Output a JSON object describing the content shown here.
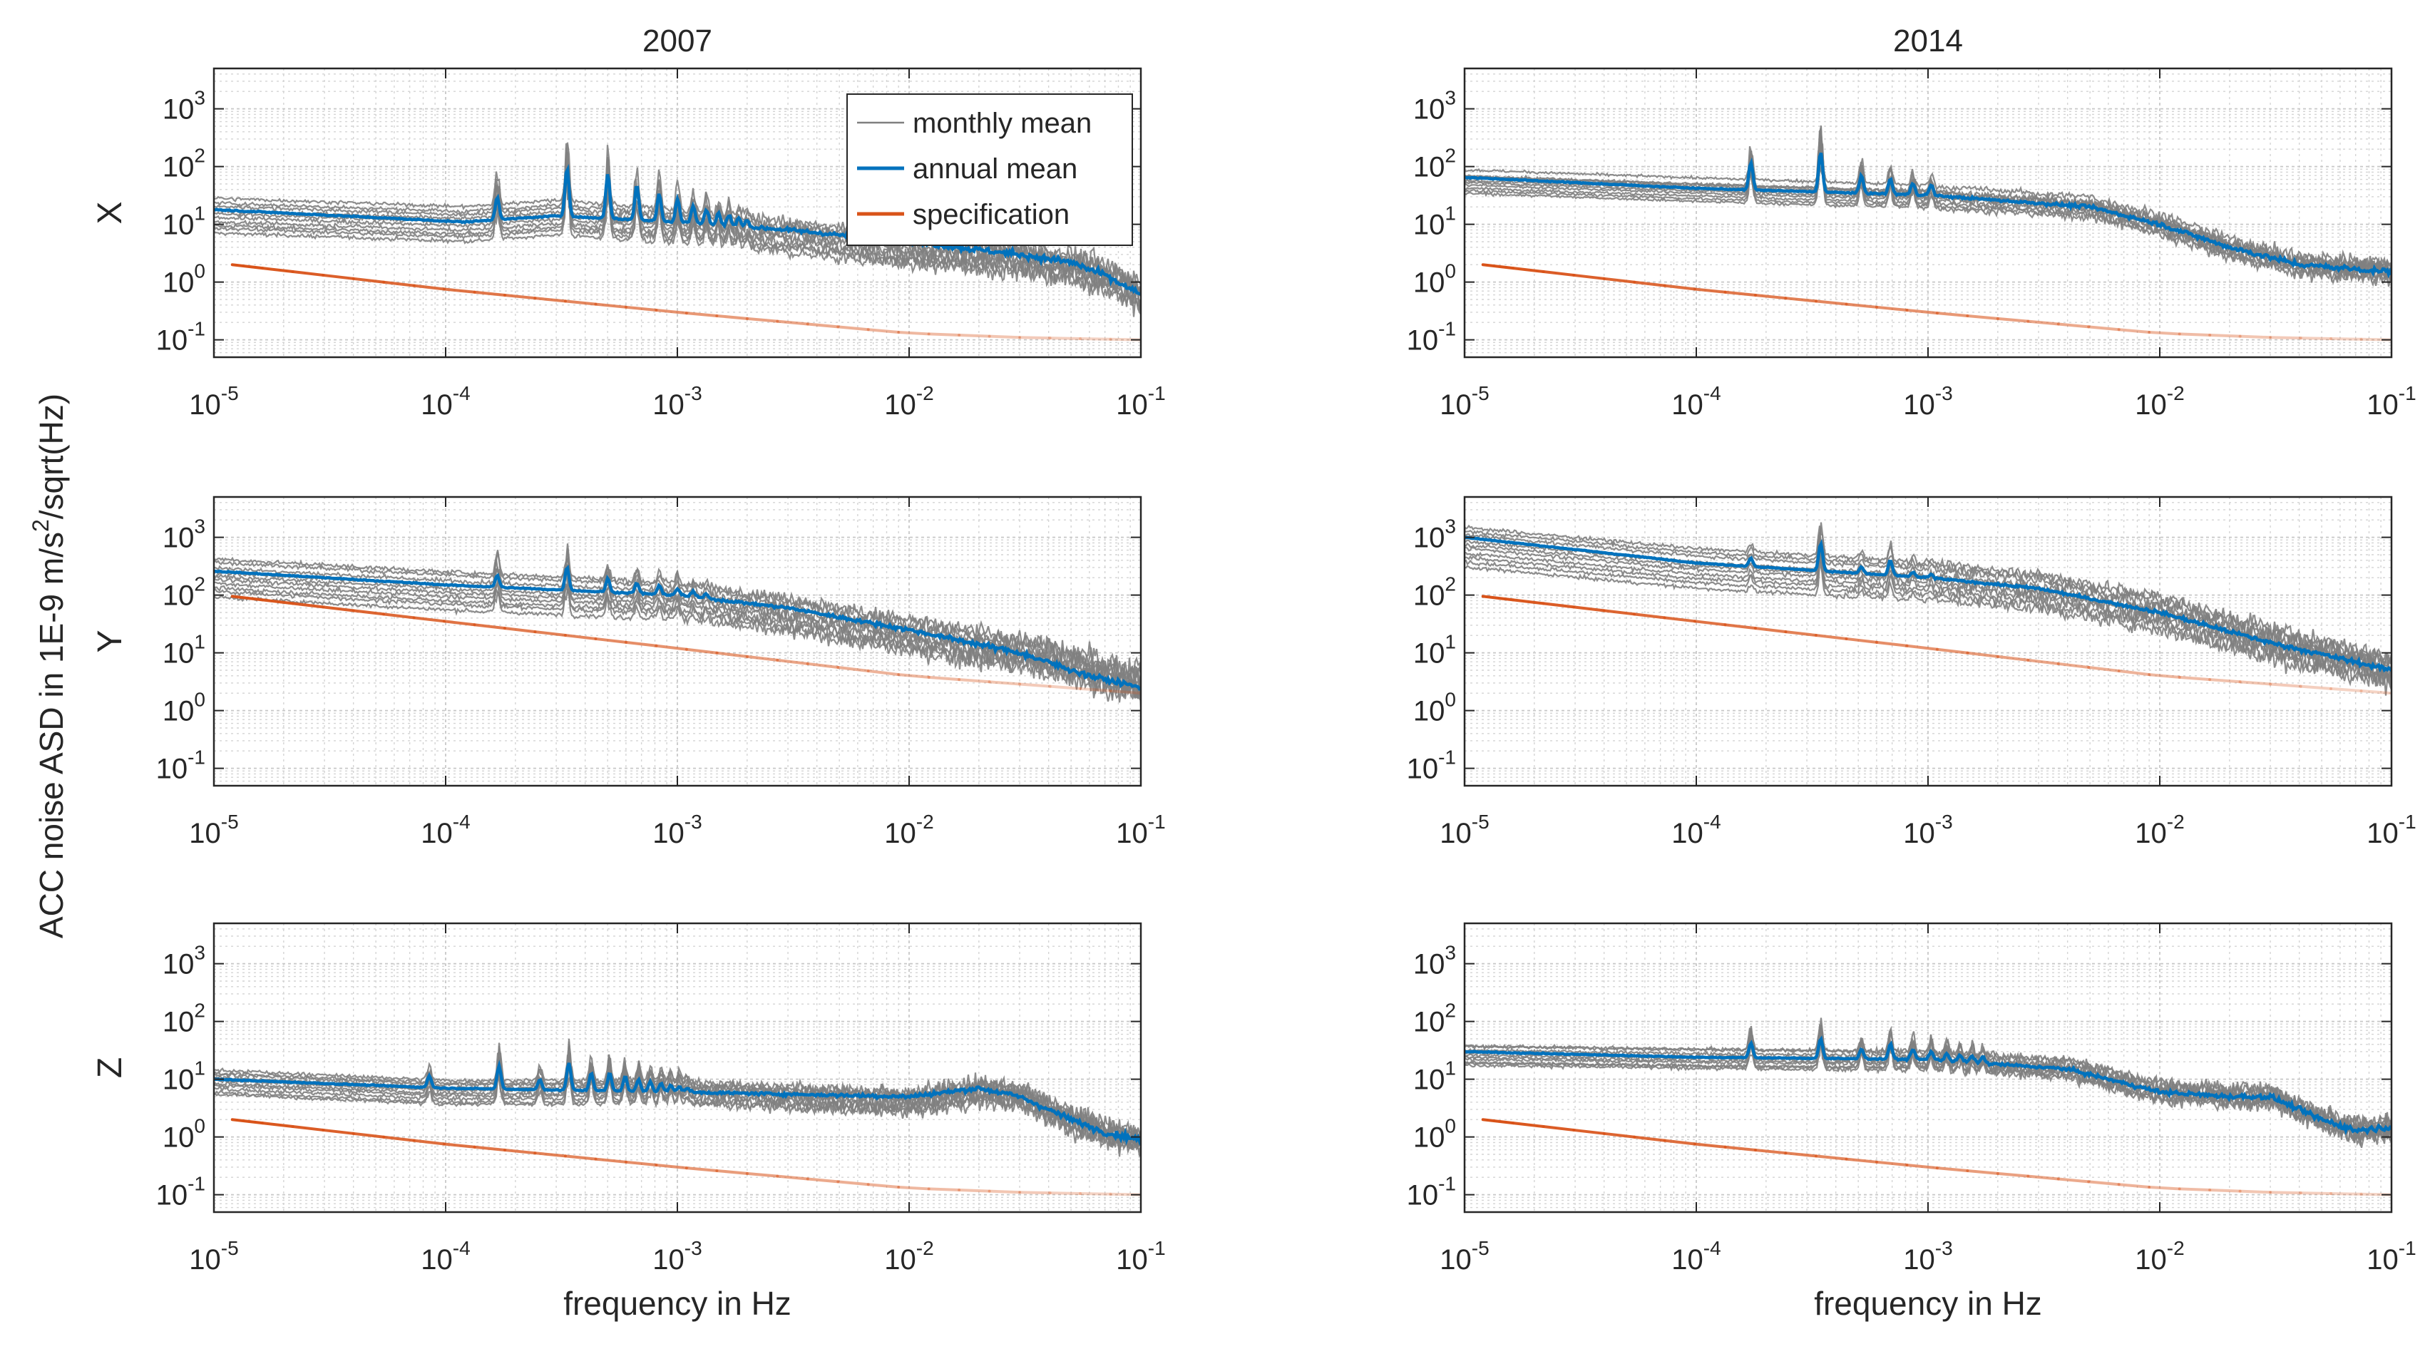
{
  "figure": {
    "ylabel": "ACC noise ASD in 1E-9 m/s",
    "ylabel_sup": "2",
    "ylabel_tail": "/sqrt(Hz)"
  },
  "chart_data": [
    {
      "type": "line",
      "panel": "2007-X",
      "title": "2007",
      "axis": "X",
      "xlabel": "",
      "xscale": "log",
      "yscale": "log",
      "xlim": [
        1e-05,
        0.1
      ],
      "ylim": [
        0.05,
        5000
      ],
      "x_ticks": [
        "10^-5",
        "10^-4",
        "10^-3",
        "10^-2",
        "10^-1"
      ],
      "y_ticks": [
        "10^-1",
        "10^0",
        "10^1",
        "10^2",
        "10^3"
      ],
      "grid": true,
      "legend": "top-right",
      "series": [
        {
          "name": "monthly mean",
          "color": "#808080",
          "anchors": [
            [
              1e-05,
              14
            ],
            [
              0.00012,
              10
            ],
            [
              0.0003,
              13
            ],
            [
              0.001,
              9
            ],
            [
              0.003,
              6
            ],
            [
              0.01,
              3.5
            ],
            [
              0.03,
              2.5
            ],
            [
              0.05,
              1.8
            ],
            [
              0.07,
              1.2
            ],
            [
              0.1,
              0.6
            ]
          ],
          "spread": 2.2,
          "peak_base": 0.000167,
          "peak_heights": [
            4,
            15,
            8,
            5,
            4,
            3,
            2.5,
            2.2,
            2,
            1.8,
            1.6,
            1.5
          ],
          "noise": 0.5
        },
        {
          "name": "annual mean",
          "color": "#0072BD",
          "anchors": [
            [
              1e-05,
              18
            ],
            [
              0.00012,
              11
            ],
            [
              0.0003,
              14
            ],
            [
              0.001,
              11
            ],
            [
              0.003,
              8
            ],
            [
              0.01,
              5
            ],
            [
              0.03,
              3
            ],
            [
              0.05,
              2.2
            ],
            [
              0.07,
              1.3
            ],
            [
              0.1,
              0.6
            ]
          ],
          "peak_base": 0.000167,
          "peak_heights": [
            2.5,
            7,
            6,
            4,
            3,
            2.5,
            2,
            1.8,
            1.6,
            1.5,
            1.4,
            1.3
          ],
          "noise": 0.15
        },
        {
          "name": "specification",
          "color": "#D95319",
          "anchors": [
            [
              1.2e-05,
              2
            ],
            [
              0.0001,
              0.75
            ],
            [
              0.001,
              0.3
            ],
            [
              0.01,
              0.13
            ],
            [
              0.03,
              0.11
            ],
            [
              0.1,
              0.1
            ]
          ]
        }
      ]
    },
    {
      "type": "line",
      "panel": "2014-X",
      "title": "2014",
      "axis": "",
      "xlabel": "",
      "xscale": "log",
      "yscale": "log",
      "xlim": [
        1e-05,
        0.1
      ],
      "ylim": [
        0.05,
        5000
      ],
      "x_ticks": [
        "10^-5",
        "10^-4",
        "10^-3",
        "10^-2",
        "10^-1"
      ],
      "y_ticks": [
        "10^-1",
        "10^0",
        "10^1",
        "10^2",
        "10^3"
      ],
      "grid": true,
      "series": [
        {
          "name": "monthly mean",
          "color": "#808080",
          "anchors": [
            [
              1e-05,
              55
            ],
            [
              0.0001,
              40
            ],
            [
              0.001,
              30
            ],
            [
              0.005,
              20
            ],
            [
              0.01,
              10
            ],
            [
              0.02,
              4
            ],
            [
              0.04,
              2
            ],
            [
              0.1,
              1.6
            ]
          ],
          "spread": 1.6,
          "peak_base": 0.000172,
          "peak_heights": [
            4,
            12,
            3,
            2.5,
            2,
            1.8
          ],
          "noise": 0.35
        },
        {
          "name": "annual mean",
          "color": "#0072BD",
          "anchors": [
            [
              1e-05,
              65
            ],
            [
              0.0001,
              42
            ],
            [
              0.001,
              32
            ],
            [
              0.005,
              20
            ],
            [
              0.01,
              10
            ],
            [
              0.02,
              4
            ],
            [
              0.04,
              2
            ],
            [
              0.1,
              1.5
            ]
          ],
          "peak_base": 0.000172,
          "peak_heights": [
            3,
            5,
            2,
            1.8,
            1.6,
            1.5
          ],
          "noise": 0.12
        },
        {
          "name": "specification",
          "color": "#D95319",
          "anchors": [
            [
              1.2e-05,
              2
            ],
            [
              0.0001,
              0.75
            ],
            [
              0.001,
              0.3
            ],
            [
              0.01,
              0.13
            ],
            [
              0.03,
              0.11
            ],
            [
              0.1,
              0.1
            ]
          ]
        }
      ]
    },
    {
      "type": "line",
      "panel": "2007-Y",
      "title": "",
      "axis": "Y",
      "xlabel": "",
      "xscale": "log",
      "yscale": "log",
      "xlim": [
        1e-05,
        0.1
      ],
      "ylim": [
        0.05,
        5000
      ],
      "x_ticks": [
        "10^-5",
        "10^-4",
        "10^-3",
        "10^-2",
        "10^-1"
      ],
      "y_ticks": [
        "10^-1",
        "10^0",
        "10^1",
        "10^2",
        "10^3"
      ],
      "grid": true,
      "series": [
        {
          "name": "monthly mean",
          "color": "#808080",
          "anchors": [
            [
              1e-05,
              200
            ],
            [
              0.0001,
              120
            ],
            [
              0.001,
              80
            ],
            [
              0.003,
              45
            ],
            [
              0.01,
              20
            ],
            [
              0.03,
              10
            ],
            [
              0.1,
              3
            ]
          ],
          "spread": 2.3,
          "peak_base": 0.000167,
          "peak_heights": [
            2.5,
            3.5,
            2,
            1.8,
            1.6,
            1.5,
            1.4,
            1.3
          ],
          "noise": 0.55
        },
        {
          "name": "annual mean",
          "color": "#0072BD",
          "anchors": [
            [
              1e-05,
              260
            ],
            [
              0.0001,
              150
            ],
            [
              0.001,
              100
            ],
            [
              0.003,
              60
            ],
            [
              0.01,
              25
            ],
            [
              0.03,
              10
            ],
            [
              0.06,
              4
            ],
            [
              0.1,
              2.5
            ]
          ],
          "peak_base": 0.000167,
          "peak_heights": [
            1.6,
            2.5,
            1.7,
            1.5,
            1.4,
            1.3,
            1.25,
            1.2
          ],
          "noise": 0.12
        },
        {
          "name": "specification",
          "color": "#D95319",
          "anchors": [
            [
              1.2e-05,
              95
            ],
            [
              0.0001,
              35
            ],
            [
              0.001,
              12
            ],
            [
              0.01,
              4
            ],
            [
              0.1,
              2
            ]
          ]
        }
      ]
    },
    {
      "type": "line",
      "panel": "2014-Y",
      "title": "",
      "axis": "",
      "xlabel": "",
      "xscale": "log",
      "yscale": "log",
      "xlim": [
        1e-05,
        0.1
      ],
      "ylim": [
        0.05,
        5000
      ],
      "x_ticks": [
        "10^-5",
        "10^-4",
        "10^-3",
        "10^-2",
        "10^-1"
      ],
      "y_ticks": [
        "10^-1",
        "10^0",
        "10^1",
        "10^2",
        "10^3"
      ],
      "grid": true,
      "series": [
        {
          "name": "monthly mean",
          "color": "#808080",
          "anchors": [
            [
              1e-05,
              700
            ],
            [
              0.0001,
              300
            ],
            [
              0.001,
              180
            ],
            [
              0.003,
              120
            ],
            [
              0.01,
              50
            ],
            [
              0.03,
              15
            ],
            [
              0.1,
              5
            ]
          ],
          "spread": 2.4,
          "peak_base": 0.000172,
          "peak_heights": [
            1.5,
            4,
            1.4,
            2,
            1.3,
            1.2
          ],
          "noise": 0.5
        },
        {
          "name": "annual mean",
          "color": "#0072BD",
          "anchors": [
            [
              1e-05,
              1000
            ],
            [
              0.0001,
              360
            ],
            [
              0.001,
              200
            ],
            [
              0.003,
              130
            ],
            [
              0.01,
              50
            ],
            [
              0.03,
              15
            ],
            [
              0.1,
              5
            ]
          ],
          "peak_base": 0.000172,
          "peak_heights": [
            1.4,
            3,
            1.3,
            1.8,
            1.2,
            1.15
          ],
          "noise": 0.1
        },
        {
          "name": "specification",
          "color": "#D95319",
          "anchors": [
            [
              1.2e-05,
              95
            ],
            [
              0.0001,
              35
            ],
            [
              0.001,
              12
            ],
            [
              0.01,
              4
            ],
            [
              0.1,
              2
            ]
          ]
        }
      ]
    },
    {
      "type": "line",
      "panel": "2007-Z",
      "title": "",
      "axis": "Z",
      "xlabel": "frequency in Hz",
      "xscale": "log",
      "yscale": "log",
      "xlim": [
        1e-05,
        0.1
      ],
      "ylim": [
        0.05,
        5000
      ],
      "x_ticks": [
        "10^-5",
        "10^-4",
        "10^-3",
        "10^-2",
        "10^-1"
      ],
      "y_ticks": [
        "10^-1",
        "10^0",
        "10^1",
        "10^2",
        "10^3"
      ],
      "grid": true,
      "series": [
        {
          "name": "monthly mean",
          "color": "#808080",
          "anchors": [
            [
              1e-05,
              9
            ],
            [
              0.0001,
              6
            ],
            [
              0.001,
              6
            ],
            [
              0.01,
              4
            ],
            [
              0.02,
              6
            ],
            [
              0.03,
              5
            ],
            [
              0.05,
              2
            ],
            [
              0.07,
              1.2
            ],
            [
              0.1,
              0.9
            ]
          ],
          "spread": 1.8,
          "peak_base": 8.5e-05,
          "peak_heights": [
            2,
            4,
            2,
            5,
            3,
            3,
            2.5,
            2.2,
            2,
            1.8,
            1.6,
            1.5,
            1.4
          ],
          "noise": 0.5
        },
        {
          "name": "annual mean",
          "color": "#0072BD",
          "anchors": [
            [
              1e-05,
              10
            ],
            [
              0.0001,
              7
            ],
            [
              0.001,
              6
            ],
            [
              0.01,
              5
            ],
            [
              0.02,
              7
            ],
            [
              0.03,
              5
            ],
            [
              0.05,
              2
            ],
            [
              0.07,
              1.2
            ],
            [
              0.1,
              0.9
            ]
          ],
          "peak_base": 8.5e-05,
          "peak_heights": [
            1.6,
            2.5,
            1.5,
            3,
            2,
            2,
            1.8,
            1.6,
            1.5,
            1.4,
            1.3,
            1.25,
            1.2
          ],
          "noise": 0.12
        },
        {
          "name": "specification",
          "color": "#D95319",
          "anchors": [
            [
              1.2e-05,
              2
            ],
            [
              0.0001,
              0.75
            ],
            [
              0.001,
              0.3
            ],
            [
              0.01,
              0.13
            ],
            [
              0.03,
              0.11
            ],
            [
              0.1,
              0.1
            ]
          ]
        }
      ]
    },
    {
      "type": "line",
      "panel": "2014-Z",
      "title": "",
      "axis": "",
      "xlabel": "frequency in Hz",
      "xscale": "log",
      "yscale": "log",
      "xlim": [
        1e-05,
        0.1
      ],
      "ylim": [
        0.05,
        5000
      ],
      "x_ticks": [
        "10^-5",
        "10^-4",
        "10^-3",
        "10^-2",
        "10^-1"
      ],
      "y_ticks": [
        "10^-1",
        "10^0",
        "10^1",
        "10^2",
        "10^3"
      ],
      "grid": true,
      "series": [
        {
          "name": "monthly mean",
          "color": "#808080",
          "anchors": [
            [
              1e-05,
              25
            ],
            [
              0.0001,
              22
            ],
            [
              0.001,
              20
            ],
            [
              0.004,
              15
            ],
            [
              0.01,
              6
            ],
            [
              0.02,
              5
            ],
            [
              0.03,
              5
            ],
            [
              0.05,
              2
            ],
            [
              0.07,
              1.3
            ],
            [
              0.1,
              1.4
            ]
          ],
          "spread": 1.7,
          "peak_base": 0.000172,
          "peak_heights": [
            2.5,
            3.5,
            2,
            2.5,
            2,
            1.8,
            1.7,
            1.6,
            1.5,
            1.5
          ],
          "noise": 0.45
        },
        {
          "name": "annual mean",
          "color": "#0072BD",
          "anchors": [
            [
              1e-05,
              30
            ],
            [
              0.0001,
              24
            ],
            [
              0.001,
              22
            ],
            [
              0.004,
              15
            ],
            [
              0.01,
              6
            ],
            [
              0.02,
              5
            ],
            [
              0.03,
              5
            ],
            [
              0.05,
              2
            ],
            [
              0.07,
              1.3
            ],
            [
              0.1,
              1.5
            ]
          ],
          "peak_base": 0.000172,
          "peak_heights": [
            1.8,
            2.2,
            1.5,
            1.8,
            1.5,
            1.4,
            1.35,
            1.3,
            1.3,
            1.3
          ],
          "noise": 0.12
        },
        {
          "name": "specification",
          "color": "#D95319",
          "anchors": [
            [
              1.2e-05,
              2
            ],
            [
              0.0001,
              0.75
            ],
            [
              0.001,
              0.3
            ],
            [
              0.01,
              0.13
            ],
            [
              0.03,
              0.11
            ],
            [
              0.1,
              0.1
            ]
          ]
        }
      ]
    }
  ]
}
